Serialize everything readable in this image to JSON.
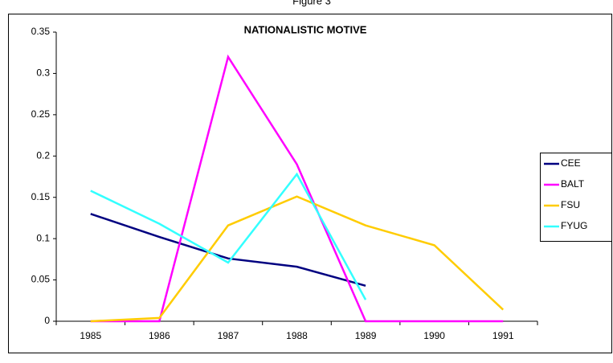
{
  "chart_data": {
    "type": "line",
    "caption": "Figure 3",
    "title": "NATIONALISTIC MOTIVE",
    "categories": [
      "1985",
      "1986",
      "1987",
      "1988",
      "1989",
      "1990",
      "1991"
    ],
    "series": [
      {
        "name": "CEE",
        "color": "#000080",
        "values": [
          0.13,
          0.102,
          0.076,
          0.066,
          0.043,
          null,
          null
        ]
      },
      {
        "name": "BALT",
        "color": "#ff00ff",
        "values": [
          0,
          0,
          0.32,
          0.19,
          0,
          0,
          0
        ]
      },
      {
        "name": "FSU",
        "color": "#ffcc00",
        "values": [
          0,
          0.004,
          0.116,
          0.151,
          0.116,
          0.092,
          0.014
        ]
      },
      {
        "name": "FYUG",
        "color": "#33ffff",
        "values": [
          0.158,
          0.118,
          0.071,
          0.178,
          0.026,
          null,
          null
        ]
      }
    ],
    "ylim": [
      0,
      0.35
    ],
    "yticks": [
      0,
      0.05,
      0.1,
      0.15,
      0.2,
      0.25,
      0.3,
      0.35
    ],
    "grid": false,
    "legend": "right"
  }
}
